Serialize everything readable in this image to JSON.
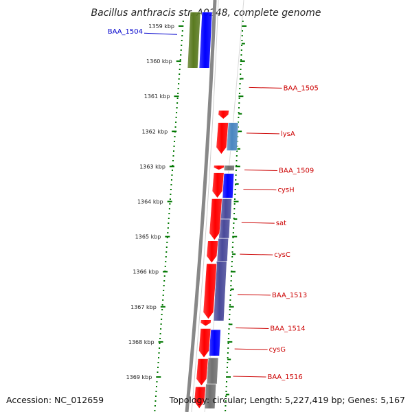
{
  "title": "Bacillus anthracis str. A0248, complete genome",
  "footer": {
    "accession": "Accession: NC_012659",
    "topology": "Topology: circular; Length: 5,227,419 bp; Genes: 5,167"
  },
  "colors": {
    "forward_gene": "#ff0000",
    "reverse_gene_blue": "#0000ff",
    "reverse_gene_slate": "#4a4a9a",
    "reverse_gene_steel": "#4a86c0",
    "reverse_gene_grey": "#707070",
    "olive_gene": "#5a7a20",
    "tick": "#007700",
    "label_red": "#cc0000",
    "label_blue": "#0000cc",
    "backbone": "#888888"
  },
  "ticks": [
    {
      "label": "1359 kbp",
      "kbp": 1359
    },
    {
      "label": "1360 kbp",
      "kbp": 1360
    },
    {
      "label": "1361 kbp",
      "kbp": 1361
    },
    {
      "label": "1362 kbp",
      "kbp": 1362
    },
    {
      "label": "1363 kbp",
      "kbp": 1363
    },
    {
      "label": "1364 kbp",
      "kbp": 1364
    },
    {
      "label": "1365 kbp",
      "kbp": 1365
    },
    {
      "label": "1366 kbp",
      "kbp": 1366
    },
    {
      "label": "1367 kbp",
      "kbp": 1367
    },
    {
      "label": "1368 kbp",
      "kbp": 1368
    },
    {
      "label": "1369 kbp",
      "kbp": 1369
    }
  ],
  "forward_features": [
    {
      "start": 1361.4,
      "end": 1361.65
    },
    {
      "start": 1361.75,
      "end": 1362.65
    },
    {
      "start": 1362.97,
      "end": 1363.1
    },
    {
      "start": 1363.18,
      "end": 1363.9
    },
    {
      "start": 1363.92,
      "end": 1365.1
    },
    {
      "start": 1365.12,
      "end": 1365.75
    },
    {
      "start": 1365.77,
      "end": 1367.35
    },
    {
      "start": 1367.37,
      "end": 1367.55
    },
    {
      "start": 1367.62,
      "end": 1368.45
    },
    {
      "start": 1368.48,
      "end": 1369.25
    },
    {
      "start": 1369.28,
      "end": 1369.9
    }
  ],
  "reverse_features": [
    {
      "start": 1358.6,
      "end": 1360.2,
      "lane": "far",
      "color": "olive_gene"
    },
    {
      "start": 1358.6,
      "end": 1360.2,
      "lane": "mid",
      "color": "reverse_gene_blue"
    },
    {
      "start": 1361.75,
      "end": 1362.55,
      "lane": "mid",
      "color": "reverse_gene_steel"
    },
    {
      "start": 1362.97,
      "end": 1363.12,
      "lane": "mid",
      "color": "reverse_gene_grey"
    },
    {
      "start": 1363.2,
      "end": 1363.9,
      "lane": "mid",
      "color": "reverse_gene_blue"
    },
    {
      "start": 1363.92,
      "end": 1364.5,
      "lane": "mid",
      "color": "reverse_gene_slate"
    },
    {
      "start": 1364.5,
      "end": 1365.05,
      "lane": "mid",
      "color": "reverse_gene_slate"
    },
    {
      "start": 1365.05,
      "end": 1365.7,
      "lane": "mid",
      "color": "reverse_gene_slate"
    },
    {
      "start": 1365.7,
      "end": 1367.4,
      "lane": "mid",
      "color": "reverse_gene_slate"
    },
    {
      "start": 1367.65,
      "end": 1368.4,
      "lane": "mid",
      "color": "reverse_gene_blue"
    },
    {
      "start": 1368.45,
      "end": 1369.2,
      "lane": "mid",
      "color": "reverse_gene_grey"
    },
    {
      "start": 1369.2,
      "end": 1369.9,
      "lane": "mid",
      "color": "reverse_gene_grey"
    }
  ],
  "gene_labels": [
    {
      "name": "BAA_1504",
      "kbp": 1359.2,
      "side": "left",
      "color": "label_blue"
    },
    {
      "name": "BAA_1505",
      "kbp": 1360.75,
      "side": "right",
      "color": "label_red"
    },
    {
      "name": "lysA",
      "kbp": 1362.05,
      "side": "right",
      "color": "label_red"
    },
    {
      "name": "BAA_1509",
      "kbp": 1363.1,
      "side": "right",
      "color": "label_red"
    },
    {
      "name": "cysH",
      "kbp": 1363.65,
      "side": "right",
      "color": "label_red"
    },
    {
      "name": "sat",
      "kbp": 1364.6,
      "side": "right",
      "color": "label_red"
    },
    {
      "name": "cysC",
      "kbp": 1365.5,
      "side": "right",
      "color": "label_red"
    },
    {
      "name": "BAA_1513",
      "kbp": 1366.65,
      "side": "right",
      "color": "label_red"
    },
    {
      "name": "BAA_1514",
      "kbp": 1367.6,
      "side": "right",
      "color": "label_red"
    },
    {
      "name": "cysG",
      "kbp": 1368.2,
      "side": "right",
      "color": "label_red"
    },
    {
      "name": "BAA_1516",
      "kbp": 1368.98,
      "side": "right",
      "color": "label_red"
    }
  ]
}
